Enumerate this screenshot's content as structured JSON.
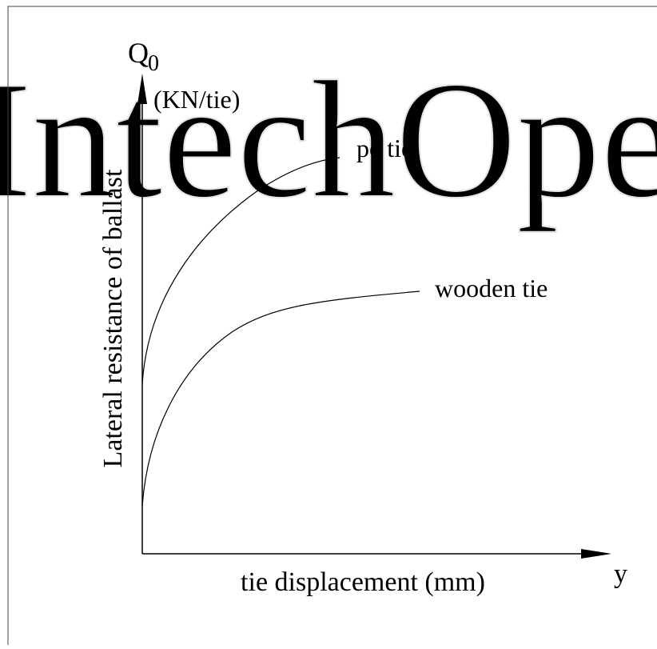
{
  "watermark": "IntechOpen",
  "y_axis": {
    "symbol": "Q",
    "subscript": "0",
    "unit": "(KN/tie)",
    "label": "Lateral resistance of ballast"
  },
  "x_axis": {
    "label": "tie displacement (mm)",
    "symbol": "y"
  },
  "curves": [
    {
      "label": "pc tie"
    },
    {
      "label": "wooden tie"
    }
  ]
}
